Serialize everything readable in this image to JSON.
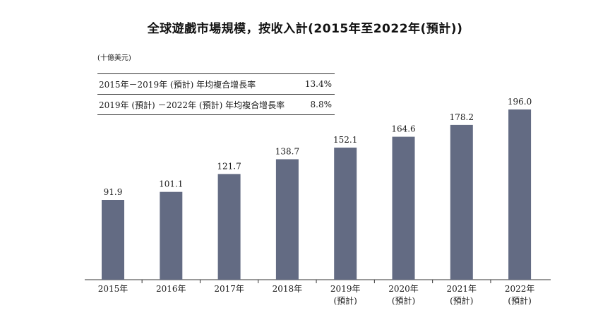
{
  "chart_data": {
    "type": "bar",
    "title": "全球遊戲市場規模，按收入計(2015年至2022年(預計))",
    "unit": "(十億美元)",
    "categories": [
      "2015年",
      "2016年",
      "2017年",
      "2018年",
      "2019年",
      "2020年",
      "2021年",
      "2022年"
    ],
    "category_sublabels": [
      "",
      "",
      "",
      "",
      "(預計)",
      "(預計)",
      "(預計)",
      "(預計)"
    ],
    "values": [
      91.9,
      101.1,
      121.7,
      138.7,
      152.1,
      164.6,
      178.2,
      196.0
    ],
    "value_labels": [
      "91.9",
      "101.1",
      "121.7",
      "138.7",
      "152.1",
      "164.6",
      "178.2",
      "196.0"
    ],
    "bar_color": "#636b83",
    "ylim": [
      0,
      200
    ],
    "grid": false,
    "cagr_table": [
      {
        "label": "2015年－2019年 (預計) 年均複合增長率",
        "value": "13.4%"
      },
      {
        "label": "2019年 (預計) －2022年 (預計) 年均複合增長率",
        "value": "8.8%"
      }
    ]
  }
}
